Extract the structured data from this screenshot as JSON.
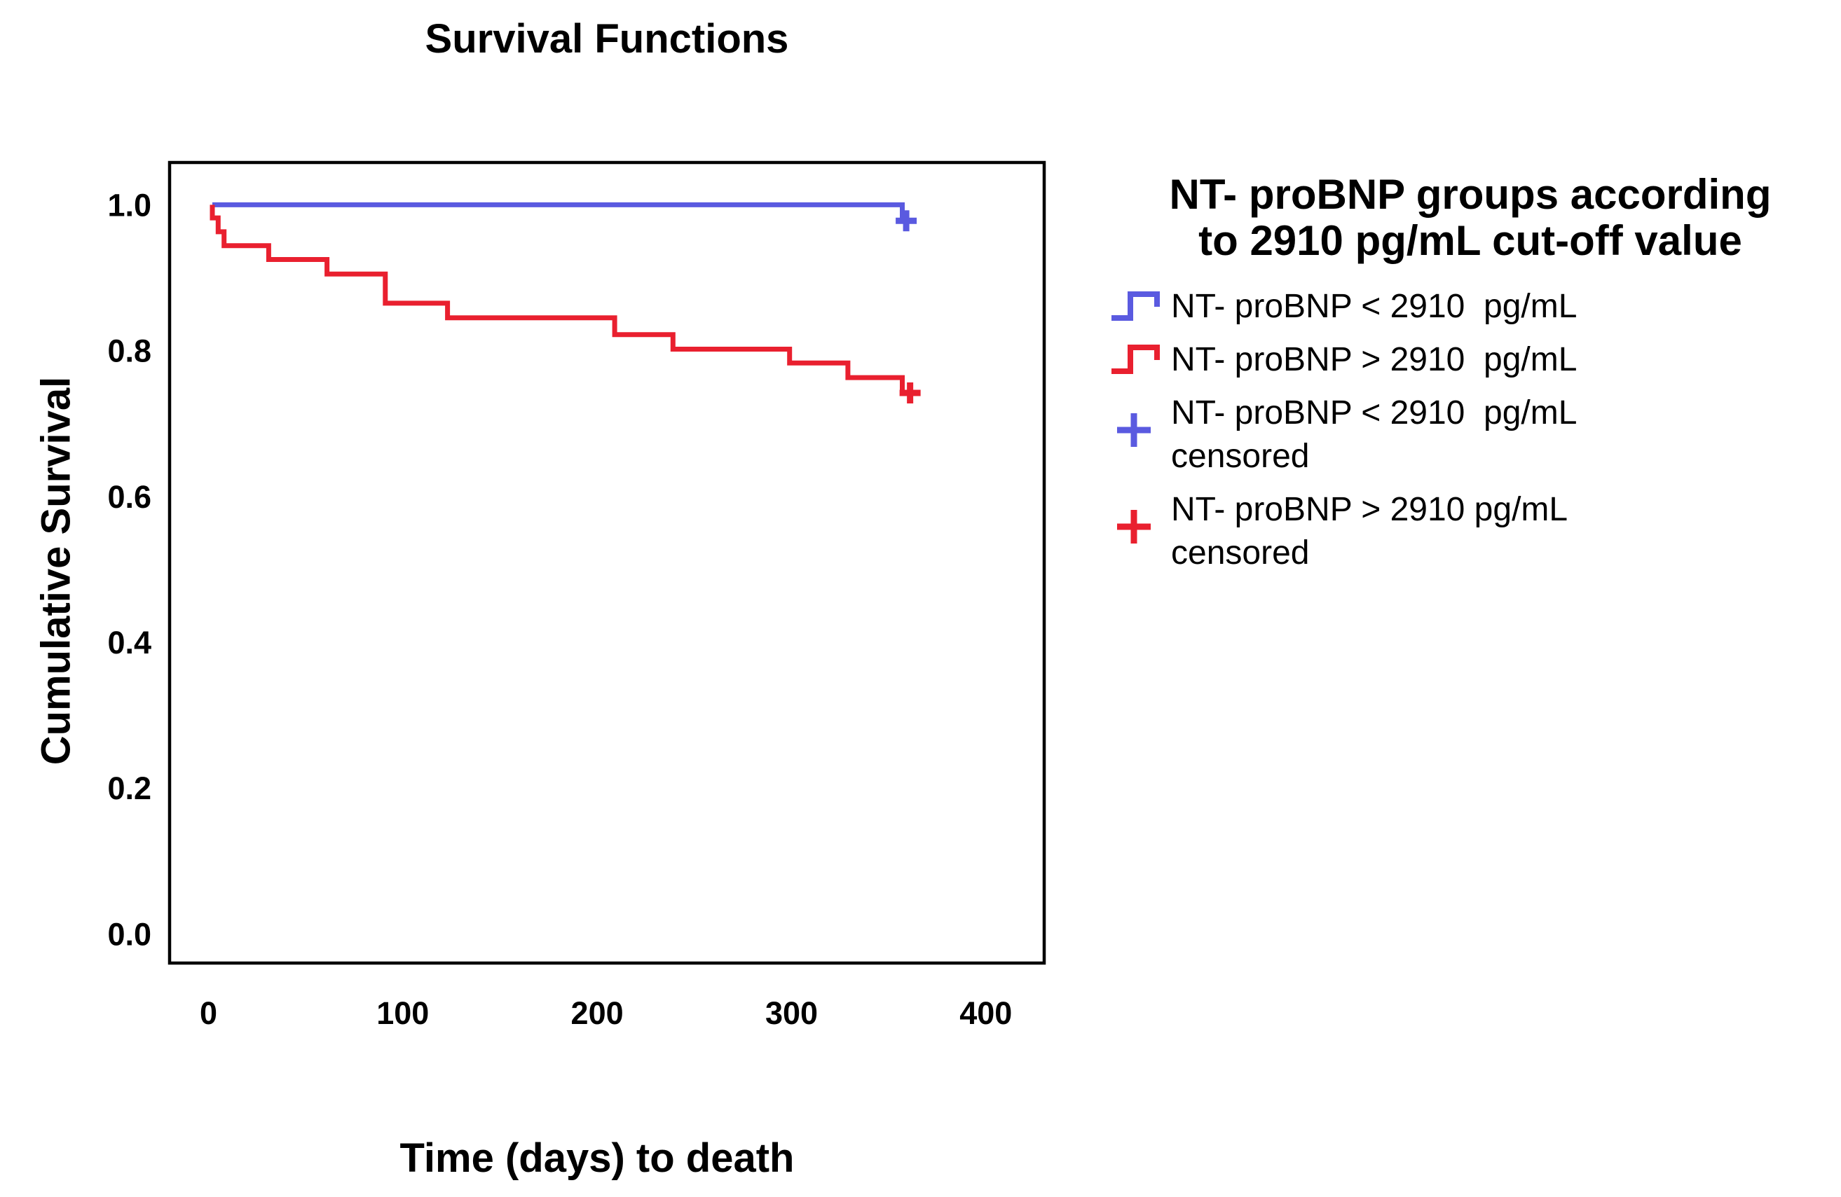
{
  "page": {
    "title": "Survival Functions",
    "x_axis_title": "Time (days) to death",
    "y_axis_title": "Cumulative Survival"
  },
  "colors": {
    "blue": "#5a5ae0",
    "red": "#e9202f",
    "axis": "#000000",
    "background": "#ffffff"
  },
  "legend": {
    "title": "NT- proBNP groups according\nto 2910 pg/mL cut-off value",
    "items": [
      {
        "symbol": "step-line",
        "color_key": "blue",
        "label": "NT- proBNP < 2910  pg/mL"
      },
      {
        "symbol": "step-line",
        "color_key": "red",
        "label": "NT- proBNP > 2910  pg/mL"
      },
      {
        "symbol": "plus",
        "color_key": "blue",
        "label": "NT- proBNP < 2910  pg/mL\ncensored"
      },
      {
        "symbol": "plus",
        "color_key": "red",
        "label": "NT- proBNP > 2910 pg/mL\ncensored"
      }
    ]
  },
  "chart_data": {
    "type": "line",
    "subtype": "kaplan-meier-step",
    "title": "Survival Functions",
    "xlabel": "Time (days) to death",
    "ylabel": "Cumulative Survival",
    "grid": false,
    "legend_position": "right",
    "x_range": [
      -20,
      430
    ],
    "y_range": [
      -0.04,
      1.058
    ],
    "x_ticks": [
      {
        "v": 0,
        "label": "0"
      },
      {
        "v": 100,
        "label": "100"
      },
      {
        "v": 200,
        "label": "200"
      },
      {
        "v": 300,
        "label": "300"
      },
      {
        "v": 400,
        "label": "400"
      }
    ],
    "y_ticks": [
      {
        "v": 0.0,
        "label": "0.0"
      },
      {
        "v": 0.2,
        "label": "0.2"
      },
      {
        "v": 0.4,
        "label": "0.4"
      },
      {
        "v": 0.6,
        "label": "0.6"
      },
      {
        "v": 0.8,
        "label": "0.8"
      },
      {
        "v": 1.0,
        "label": "1.0"
      }
    ],
    "series": [
      {
        "name": "NT- proBNP < 2910 pg/mL",
        "color_key": "blue",
        "step_vertices": [
          [
            2,
            1.0
          ],
          [
            357,
            1.0
          ],
          [
            357,
            0.978
          ],
          [
            359,
            0.978
          ]
        ],
        "censored": [
          [
            359,
            0.978
          ]
        ]
      },
      {
        "name": "NT- proBNP > 2910 pg/mL",
        "color_key": "red",
        "step_vertices": [
          [
            2,
            1.0
          ],
          [
            2,
            0.982
          ],
          [
            5,
            0.982
          ],
          [
            5,
            0.963
          ],
          [
            8,
            0.963
          ],
          [
            8,
            0.944
          ],
          [
            31,
            0.944
          ],
          [
            31,
            0.925
          ],
          [
            61,
            0.925
          ],
          [
            61,
            0.905
          ],
          [
            91,
            0.905
          ],
          [
            91,
            0.865
          ],
          [
            123,
            0.865
          ],
          [
            123,
            0.845
          ],
          [
            209,
            0.845
          ],
          [
            209,
            0.822
          ],
          [
            239,
            0.822
          ],
          [
            239,
            0.802
          ],
          [
            299,
            0.802
          ],
          [
            299,
            0.783
          ],
          [
            329,
            0.783
          ],
          [
            329,
            0.763
          ],
          [
            357,
            0.763
          ],
          [
            357,
            0.742
          ],
          [
            361,
            0.742
          ]
        ],
        "censored": [
          [
            361,
            0.742
          ]
        ]
      }
    ]
  }
}
